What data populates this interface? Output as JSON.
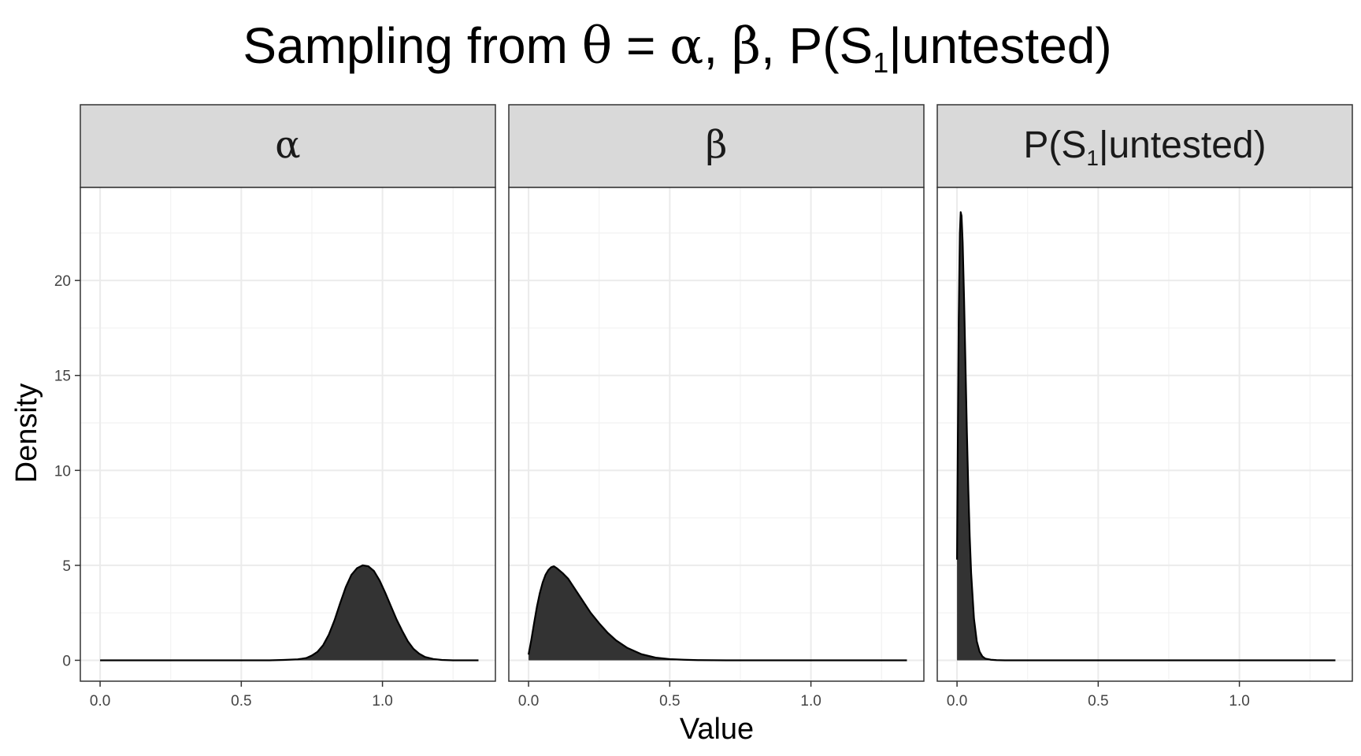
{
  "chart_data": {
    "type": "area",
    "title_parts": {
      "prefix": "Sampling from ",
      "theta": "θ",
      "equals": " = ",
      "alpha": "α",
      "sep1": ", ",
      "beta": "β",
      "sep2": ", ",
      "p_open": "P(S",
      "sub": "1",
      "bar": "|",
      "p_rest": "untested)"
    },
    "xlabel": "Value",
    "ylabel": "Density",
    "xlim": [
      -0.07,
      1.4
    ],
    "ylim": [
      -1.1,
      24.9
    ],
    "x_ticks": [
      0.0,
      0.5,
      1.0
    ],
    "x_tick_labels": [
      "0.0",
      "0.5",
      "1.0"
    ],
    "y_ticks": [
      0,
      5,
      10,
      15,
      20
    ],
    "y_tick_labels": [
      "0",
      "5",
      "10",
      "15",
      "20"
    ],
    "grid": true,
    "colors": {
      "fill": "#333333",
      "line": "#000000",
      "strip_bg": "#d9d9d9",
      "panel_border": "#333333",
      "grid_major": "#ebebeb",
      "grid_minor": "#f2f2f2"
    },
    "facets": [
      {
        "label_greek": "α",
        "x": [
          0.0,
          0.5,
          0.6,
          0.65,
          0.7,
          0.73,
          0.75,
          0.77,
          0.79,
          0.81,
          0.83,
          0.85,
          0.87,
          0.89,
          0.91,
          0.93,
          0.95,
          0.97,
          0.99,
          1.01,
          1.03,
          1.05,
          1.07,
          1.09,
          1.11,
          1.13,
          1.15,
          1.18,
          1.21,
          1.25,
          1.3,
          1.34
        ],
        "y": [
          0.0,
          0.0,
          0.0,
          0.02,
          0.05,
          0.12,
          0.25,
          0.45,
          0.8,
          1.35,
          2.1,
          3.0,
          3.85,
          4.5,
          4.85,
          5.0,
          4.95,
          4.7,
          4.2,
          3.55,
          2.85,
          2.15,
          1.55,
          1.0,
          0.6,
          0.35,
          0.18,
          0.07,
          0.02,
          0.0,
          0.0,
          0.0
        ]
      },
      {
        "label_greek": "β",
        "x": [
          0.0,
          0.01,
          0.02,
          0.03,
          0.04,
          0.05,
          0.06,
          0.07,
          0.08,
          0.09,
          0.1,
          0.12,
          0.14,
          0.16,
          0.18,
          0.2,
          0.22,
          0.25,
          0.28,
          0.31,
          0.35,
          0.4,
          0.45,
          0.5,
          0.55,
          0.6,
          0.7,
          0.8,
          1.0,
          1.2,
          1.34
        ],
        "y": [
          0.3,
          1.1,
          2.0,
          2.85,
          3.55,
          4.1,
          4.5,
          4.75,
          4.9,
          4.95,
          4.85,
          4.6,
          4.3,
          3.85,
          3.4,
          2.95,
          2.5,
          1.95,
          1.45,
          1.05,
          0.65,
          0.32,
          0.14,
          0.06,
          0.03,
          0.01,
          0.0,
          0.0,
          0.0,
          0.0,
          0.0
        ]
      },
      {
        "label_parts": {
          "p_open": "P(S",
          "sub": "1",
          "bar": "|",
          "p_rest": "untested)"
        },
        "x": [
          0.0,
          0.003,
          0.006,
          0.01,
          0.013,
          0.016,
          0.02,
          0.025,
          0.03,
          0.035,
          0.04,
          0.045,
          0.05,
          0.06,
          0.07,
          0.08,
          0.09,
          0.1,
          0.12,
          0.14,
          0.17,
          0.2,
          0.3,
          0.5,
          1.0,
          1.34
        ],
        "y": [
          5.3,
          12.0,
          18.0,
          22.5,
          23.6,
          23.4,
          22.0,
          19.0,
          15.5,
          12.0,
          9.0,
          6.5,
          4.6,
          2.2,
          1.0,
          0.45,
          0.2,
          0.09,
          0.03,
          0.01,
          0.0,
          0.0,
          0.0,
          0.0,
          0.0,
          0.0
        ]
      }
    ]
  }
}
